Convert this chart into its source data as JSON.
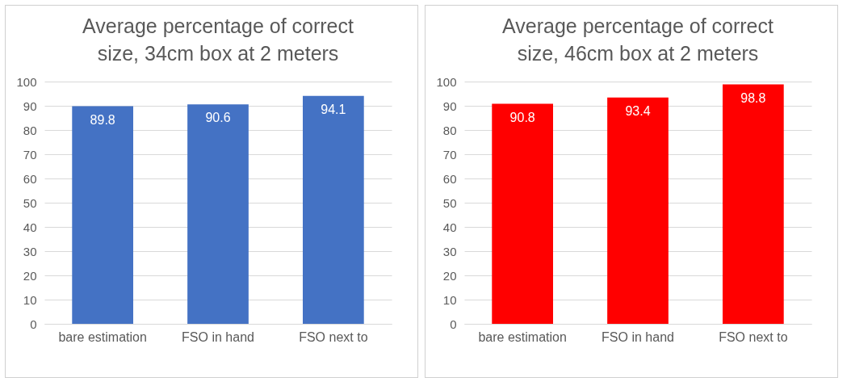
{
  "chart_data": [
    {
      "type": "bar",
      "title": "Average percentage of correct size, 34cm box at 2 meters",
      "categories": [
        "bare estimation",
        "FSO in hand",
        "FSO next to"
      ],
      "values": [
        89.8,
        90.6,
        94.1
      ],
      "color": "#4472c4",
      "ylim": [
        0,
        100
      ],
      "yticks": [
        0,
        10,
        20,
        30,
        40,
        50,
        60,
        70,
        80,
        90,
        100
      ],
      "grid": "y",
      "data_labels": true
    },
    {
      "type": "bar",
      "title": "Average percentage of correct size, 46cm box at 2 meters",
      "categories": [
        "bare estimation",
        "FSO in hand",
        "FSO next to"
      ],
      "values": [
        90.8,
        93.4,
        98.8
      ],
      "color": "#ff0000",
      "ylim": [
        0,
        100
      ],
      "yticks": [
        0,
        10,
        20,
        30,
        40,
        50,
        60,
        70,
        80,
        90,
        100
      ],
      "grid": "y",
      "data_labels": true
    }
  ]
}
